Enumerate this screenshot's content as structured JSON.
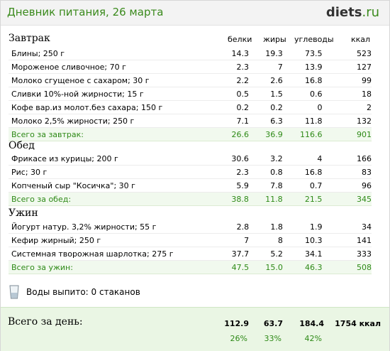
{
  "header": {
    "title": "Дневник питания, 26 марта",
    "logo_main": "diets",
    "logo_suffix": ".ru"
  },
  "columns": {
    "protein": "белки",
    "fat": "жиры",
    "carbs": "углеводы",
    "kcal": "ккал"
  },
  "meals": [
    {
      "title": "Завтрак",
      "rows": [
        {
          "name": "Блины; 250 г",
          "protein": "14.3",
          "fat": "19.3",
          "carbs": "73.5",
          "kcal": "523"
        },
        {
          "name": "Мороженое сливочное; 70 г",
          "protein": "2.3",
          "fat": "7",
          "carbs": "13.9",
          "kcal": "127"
        },
        {
          "name": "Молоко сгущеное с сахаром; 30 г",
          "protein": "2.2",
          "fat": "2.6",
          "carbs": "16.8",
          "kcal": "99"
        },
        {
          "name": "Сливки 10%-ной жирности; 15 г",
          "protein": "0.5",
          "fat": "1.5",
          "carbs": "0.6",
          "kcal": "18"
        },
        {
          "name": "Кофе вар.из молот.без сахара; 150 г",
          "protein": "0.2",
          "fat": "0.2",
          "carbs": "0",
          "kcal": "2"
        },
        {
          "name": "Молоко 2,5% жирности; 250 г",
          "protein": "7.1",
          "fat": "6.3",
          "carbs": "11.8",
          "kcal": "132"
        }
      ],
      "total": {
        "label": "Всего за завтрак:",
        "protein": "26.6",
        "fat": "36.9",
        "carbs": "116.6",
        "kcal": "901"
      }
    },
    {
      "title": "Обед",
      "rows": [
        {
          "name": "Фрикасе из курицы; 200 г",
          "protein": "30.6",
          "fat": "3.2",
          "carbs": "4",
          "kcal": "166"
        },
        {
          "name": "Рис; 30 г",
          "protein": "2.3",
          "fat": "0.8",
          "carbs": "16.8",
          "kcal": "83"
        },
        {
          "name": "Копченый сыр \"Косичка\"; 30 г",
          "protein": "5.9",
          "fat": "7.8",
          "carbs": "0.7",
          "kcal": "96"
        }
      ],
      "total": {
        "label": "Всего за обед:",
        "protein": "38.8",
        "fat": "11.8",
        "carbs": "21.5",
        "kcal": "345"
      }
    },
    {
      "title": "Ужин",
      "rows": [
        {
          "name": "Йогурт натур. 3,2% жирности; 55 г",
          "protein": "2.8",
          "fat": "1.8",
          "carbs": "1.9",
          "kcal": "34"
        },
        {
          "name": "Кефир жирный; 250 г",
          "protein": "7",
          "fat": "8",
          "carbs": "10.3",
          "kcal": "141"
        },
        {
          "name": "Системная творожная шарлотка; 275 г",
          "protein": "37.7",
          "fat": "5.2",
          "carbs": "34.1",
          "kcal": "333"
        }
      ],
      "total": {
        "label": "Всего за ужин:",
        "protein": "47.5",
        "fat": "15.0",
        "carbs": "46.3",
        "kcal": "508"
      }
    }
  ],
  "water": {
    "icon": "water-glass-icon",
    "text": "Воды выпито: 0 стаканов"
  },
  "day_total": {
    "label": "Всего за день:",
    "protein": "112.9",
    "fat": "63.7",
    "carbs": "184.4",
    "kcal": "1754 ккал",
    "protein_pct": "26%",
    "fat_pct": "33%",
    "carbs_pct": "42%"
  },
  "colors": {
    "accent": "#3a8a1c",
    "total_row_bg": "#f1f9ee",
    "day_box_bg": "#eaf6e4"
  }
}
